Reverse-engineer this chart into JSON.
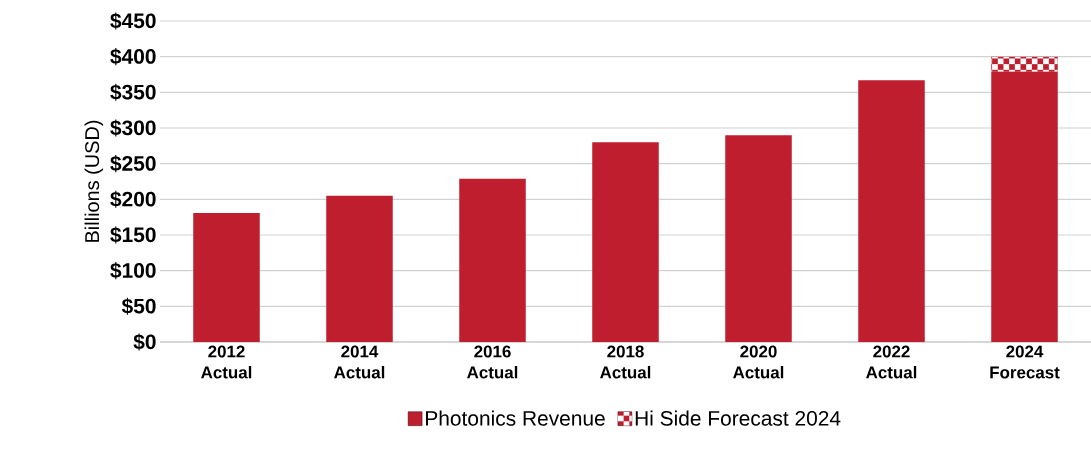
{
  "chart_data": {
    "type": "bar",
    "stacked": true,
    "ylabel": "Billions (USD)",
    "categories": [
      "2012 Actual",
      "2014 Actual",
      "2016 Actual",
      "2018 Actual",
      "2020 Actual",
      "2022 Actual",
      "2024 Forecast"
    ],
    "series": [
      {
        "name": "Photonics Revenue",
        "color": "#be1e2d",
        "values": [
          181,
          205,
          229,
          280,
          290,
          367,
          379
        ]
      },
      {
        "name": "Hi Side Forecast 2024",
        "color": "#be1e2d",
        "values": [
          null,
          null,
          null,
          null,
          null,
          null,
          21
        ]
      }
    ],
    "ylim": [
      0,
      450
    ],
    "yticks": [
      {
        "value": 0,
        "label": "$0"
      },
      {
        "value": 50,
        "label": "$50"
      },
      {
        "value": 100,
        "label": "$100"
      },
      {
        "value": 150,
        "label": "$150"
      },
      {
        "value": 200,
        "label": "$200"
      },
      {
        "value": 250,
        "label": "$250"
      },
      {
        "value": 300,
        "label": "$300"
      },
      {
        "value": 350,
        "label": "$350"
      },
      {
        "value": 400,
        "label": "$400"
      },
      {
        "value": 450,
        "label": "$450"
      }
    ],
    "grid": "y",
    "legend": "bottom"
  }
}
